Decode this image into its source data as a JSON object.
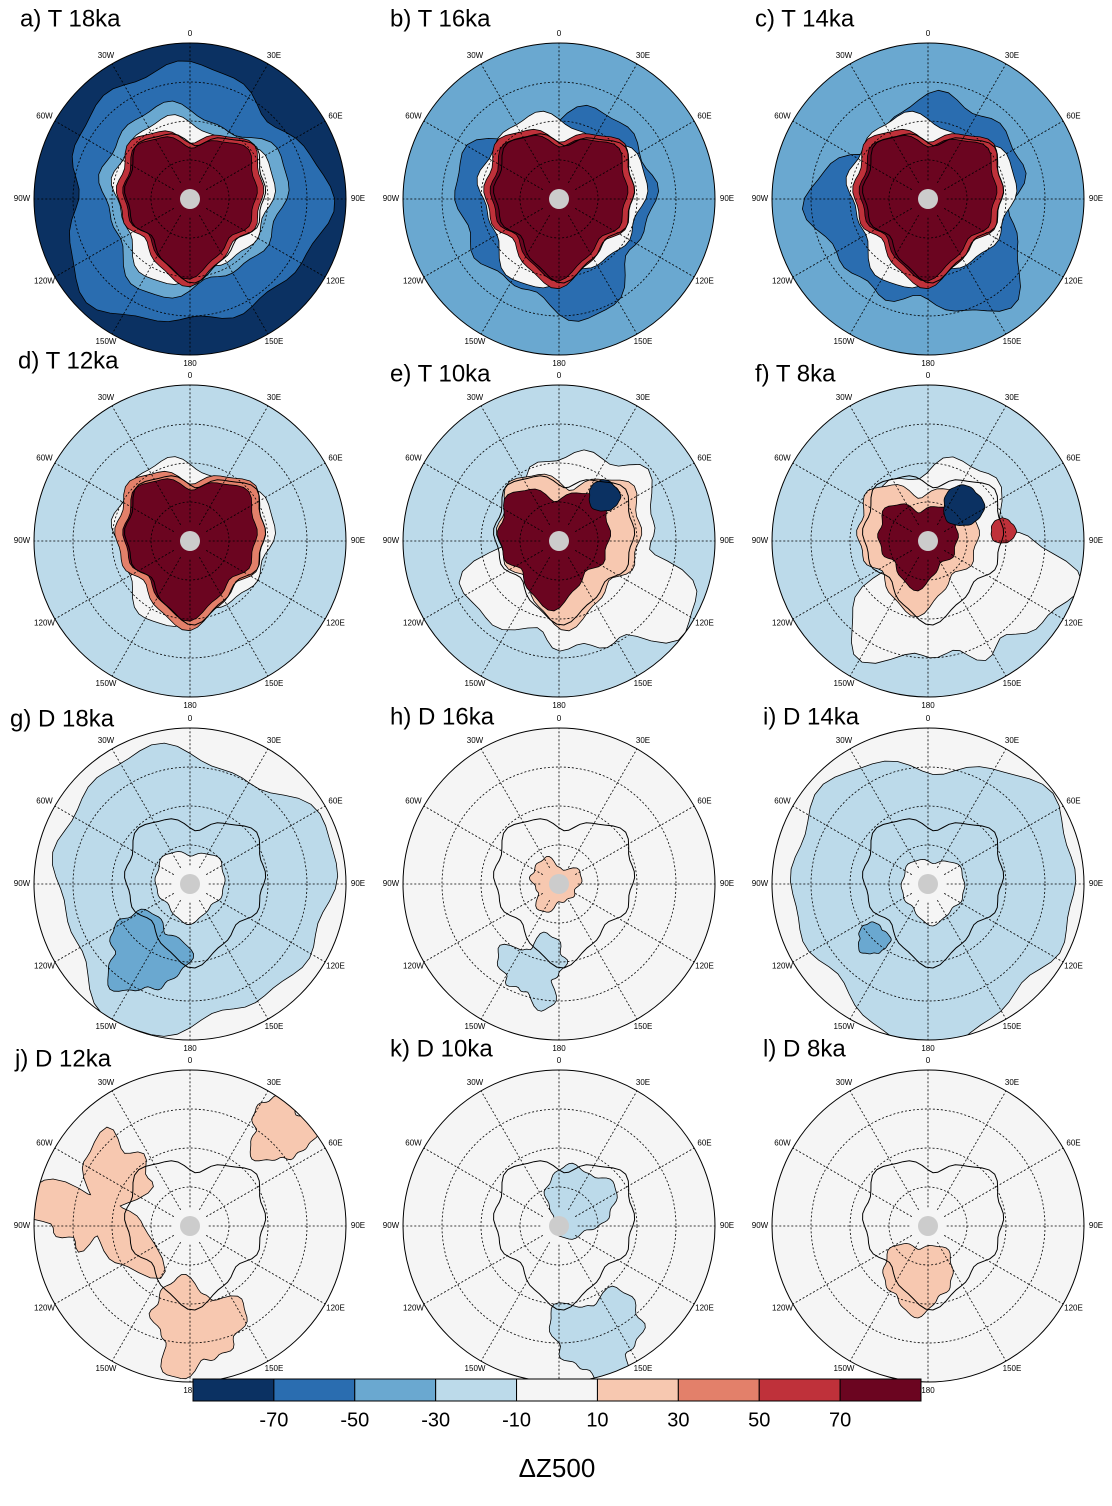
{
  "panels": [
    {
      "title": "a) T 18ka"
    },
    {
      "title": "b) T 16ka"
    },
    {
      "title": "c) T 14ka"
    },
    {
      "title": "d) T 12ka"
    },
    {
      "title": "e) T 10ka"
    },
    {
      "title": "f) T 8ka"
    },
    {
      "title": "g) D 18ka"
    },
    {
      "title": "h) D 16ka"
    },
    {
      "title": "i) D 14ka"
    },
    {
      "title": "j) D 12ka"
    },
    {
      "title": "k) D 10ka"
    },
    {
      "title": "l) D 8ka"
    }
  ],
  "lon_labels": [
    "0",
    "30E",
    "60E",
    "90E",
    "120E",
    "150E",
    "180",
    "150W",
    "120W",
    "90W",
    "60W",
    "30W"
  ],
  "colorbar": {
    "colors": [
      "#0b3162",
      "#2a6db0",
      "#6aa8d0",
      "#bcdaea",
      "#f5f5f5",
      "#f7c8b0",
      "#e3806a",
      "#bf313a",
      "#6b0520"
    ],
    "ticks": [
      -70,
      -50,
      -30,
      -10,
      10,
      30,
      50,
      70
    ],
    "label": "ΔZ500"
  }
}
